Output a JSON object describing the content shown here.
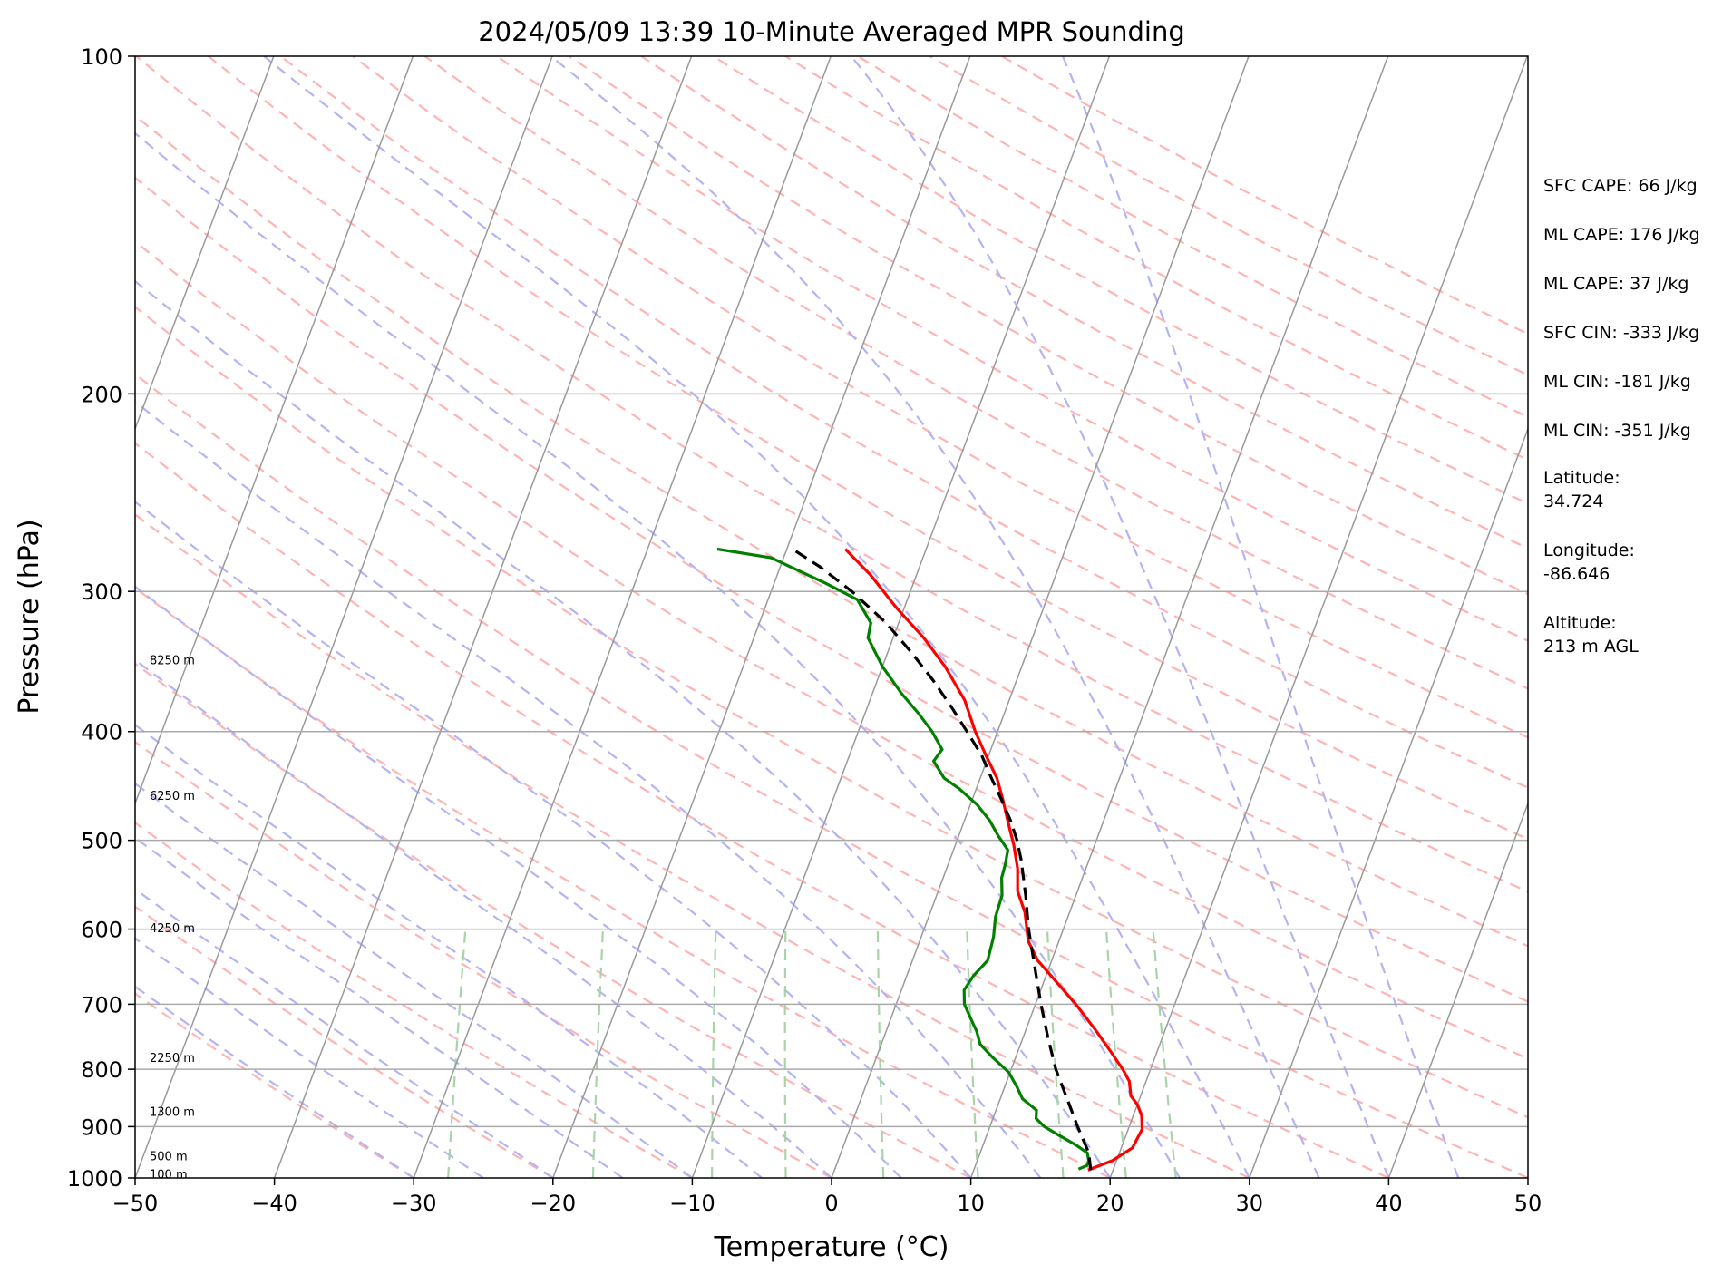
{
  "title": "2024/05/09 13:39 10-Minute Averaged MPR Sounding",
  "chart_data": {
    "type": "skew-t",
    "title": "2024/05/09 13:39 10-Minute Averaged MPR Sounding",
    "xlabel": "Temperature (°C)",
    "ylabel": "Pressure (hPa)",
    "xlim": [
      -50,
      50
    ],
    "ylim": [
      1000,
      100
    ],
    "y_scale": "log",
    "x_ticks": [
      "−50",
      "−40",
      "−30",
      "−20",
      "−10",
      "0",
      "10",
      "20",
      "30",
      "40",
      "50"
    ],
    "y_ticks": [
      "100",
      "200",
      "300",
      "400",
      "500",
      "600",
      "700",
      "800",
      "900",
      "1000"
    ],
    "grid": true,
    "colors": {
      "temperature": "#ff0000",
      "dewpoint": "#008000",
      "parcel": "#000000",
      "dry_adiabats": "#ffb3b3",
      "moist_adiabats": "#b3b3f5",
      "mixing_ratio": "#a8d4a8",
      "isotherms": "#999999",
      "isobars": "#aaaaaa"
    },
    "series": [
      {
        "key": "temperature",
        "p": [
          984,
          965,
          940,
          905,
          880,
          860,
          845,
          820,
          800,
          770,
          740,
          700,
          670,
          640,
          615,
          580,
          555,
          530,
          505,
          480,
          460,
          440,
          420,
          400,
          375,
          350,
          330,
          310,
          290,
          275
        ],
        "values": [
          18.2,
          19.7,
          20.8,
          21.0,
          20.6,
          20.0,
          19.3,
          18.8,
          18.0,
          16.6,
          15.1,
          12.9,
          11.0,
          9.0,
          7.8,
          6.8,
          5.7,
          5.1,
          4.2,
          3.1,
          2.2,
          1.2,
          -0.2,
          -1.6,
          -3.2,
          -5.5,
          -7.8,
          -10.6,
          -13.3,
          -15.8
        ]
      },
      {
        "key": "dewpoint",
        "p": [
          982,
          975,
          965,
          950,
          935,
          915,
          900,
          885,
          870,
          850,
          830,
          805,
          780,
          760,
          740,
          720,
          700,
          680,
          660,
          640,
          610,
          585,
          560,
          540,
          525,
          510,
          495,
          480,
          465,
          450,
          440,
          425,
          415,
          400,
          385,
          370,
          350,
          330,
          320,
          305,
          295,
          280,
          275
        ],
        "values": [
          17.5,
          18.0,
          18.0,
          17.7,
          16.7,
          15.1,
          13.9,
          13.1,
          12.9,
          11.6,
          10.9,
          9.9,
          8.3,
          7.1,
          6.5,
          5.7,
          4.9,
          4.5,
          4.8,
          5.4,
          5.2,
          4.8,
          4.7,
          4.2,
          4.1,
          3.9,
          2.8,
          1.8,
          0.5,
          -1.2,
          -2.6,
          -3.8,
          -3.5,
          -4.7,
          -6.2,
          -7.9,
          -10.0,
          -11.8,
          -12.0,
          -13.6,
          -16.3,
          -20.9,
          -25.0
        ]
      },
      {
        "key": "parcel",
        "p": [
          984,
          950,
          900,
          850,
          800,
          750,
          700,
          650,
          600,
          560,
          520,
          500,
          480,
          460,
          440,
          420,
          400,
          380,
          360,
          340,
          320,
          300,
          285,
          275
        ],
        "values": [
          18.4,
          17.8,
          16.3,
          14.8,
          13.2,
          11.8,
          10.4,
          9.0,
          7.5,
          6.4,
          5.1,
          4.3,
          3.3,
          2.1,
          0.8,
          -0.5,
          -2.2,
          -4.0,
          -6.0,
          -8.3,
          -10.9,
          -14.2,
          -17.2,
          -19.6
        ]
      }
    ],
    "height_labels": [
      {
        "text": "8250 m",
        "p": 345
      },
      {
        "text": "6250 m",
        "p": 456
      },
      {
        "text": "4250 m",
        "p": 598
      },
      {
        "text": "2250 m",
        "p": 781
      },
      {
        "text": "1300 m",
        "p": 872
      },
      {
        "text": "500 m",
        "p": 955
      },
      {
        "text": "100 m",
        "p": 992
      }
    ]
  },
  "stats": [
    {
      "label": "SFC CAPE: 66 J/kg"
    },
    {
      "label": "ML CAPE: 176 J/kg"
    },
    {
      "label": "ML CAPE: 37 J/kg"
    },
    {
      "label": "SFC CIN: -333 J/kg"
    },
    {
      "label": "ML CIN: -181 J/kg"
    },
    {
      "label": "ML CIN: -351 J/kg"
    }
  ],
  "location": [
    {
      "key": "Latitude:",
      "value": "34.724"
    },
    {
      "key": "Longitude:",
      "value": "-86.646"
    },
    {
      "key": "Altitude:",
      "value": "213 m AGL"
    }
  ]
}
